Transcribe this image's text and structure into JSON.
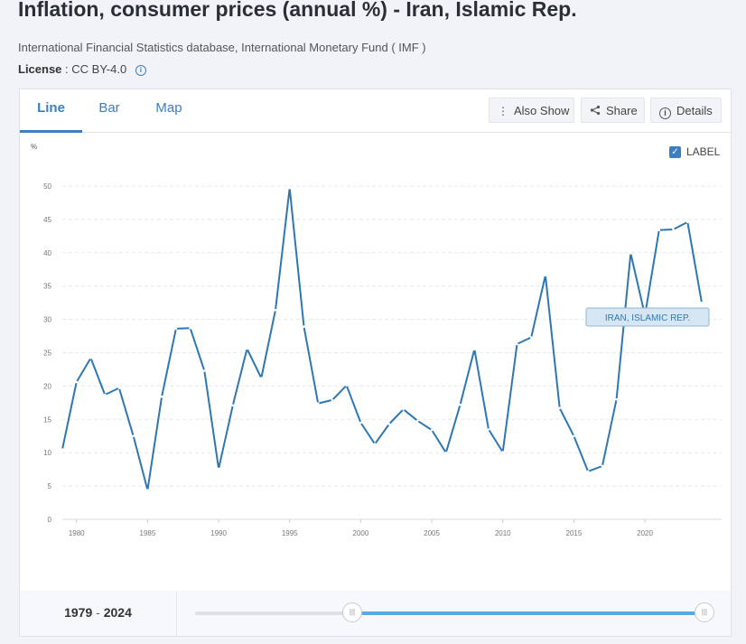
{
  "header": {
    "title": "Inflation, consumer prices (annual %) - Iran, Islamic Rep.",
    "source": "International Financial Statistics database, International Monetary Fund ( IMF )",
    "license_label": "License",
    "license_value": ": CC BY-4.0"
  },
  "tabs": [
    {
      "label": "Line",
      "active": true
    },
    {
      "label": "Bar",
      "active": false
    },
    {
      "label": "Map",
      "active": false
    }
  ],
  "toolbar": {
    "also_show": "Also Show",
    "share": "Share",
    "details": "Details"
  },
  "label_toggle": {
    "label": "LABEL",
    "checked": true
  },
  "footer": {
    "range_start": "1979",
    "range_sep": " - ",
    "range_end": "2024"
  },
  "colors": {
    "accent": "#3a7fc1",
    "line": "#2e77b3",
    "slider_fill": "#5aa9e0"
  },
  "chart_data": {
    "type": "line",
    "ylabel": "%",
    "ylim": [
      0,
      50
    ],
    "yticks": [
      0,
      5,
      10,
      15,
      20,
      25,
      30,
      35,
      40,
      45,
      50
    ],
    "xticks": [
      1980,
      1985,
      1990,
      1995,
      2000,
      2005,
      2010,
      2015,
      2020
    ],
    "grid": true,
    "series": [
      {
        "name": "IRAN, ISLAMIC REP.",
        "x": [
          1979,
          1980,
          1981,
          1982,
          1983,
          1984,
          1985,
          1986,
          1987,
          1988,
          1989,
          1990,
          1991,
          1992,
          1993,
          1994,
          1995,
          1996,
          1997,
          1998,
          1999,
          2000,
          2001,
          2002,
          2003,
          2004,
          2005,
          2006,
          2007,
          2008,
          2009,
          2010,
          2011,
          2012,
          2013,
          2014,
          2015,
          2016,
          2017,
          2018,
          2019,
          2020,
          2021,
          2022,
          2023,
          2024
        ],
        "values": [
          10.5,
          20.6,
          24.2,
          18.7,
          19.7,
          12.5,
          4.4,
          18.4,
          28.6,
          28.7,
          22.3,
          7.6,
          17.1,
          25.6,
          21.2,
          31.4,
          49.7,
          28.9,
          17.4,
          17.9,
          20.1,
          14.5,
          11.3,
          14.3,
          16.5,
          14.8,
          13.4,
          10.0,
          17.2,
          25.5,
          13.5,
          10.1,
          26.3,
          27.3,
          36.6,
          16.7,
          12.5,
          7.2,
          8.0,
          18.0,
          39.9,
          30.6,
          43.4,
          43.5,
          44.6,
          32.5
        ]
      }
    ]
  }
}
